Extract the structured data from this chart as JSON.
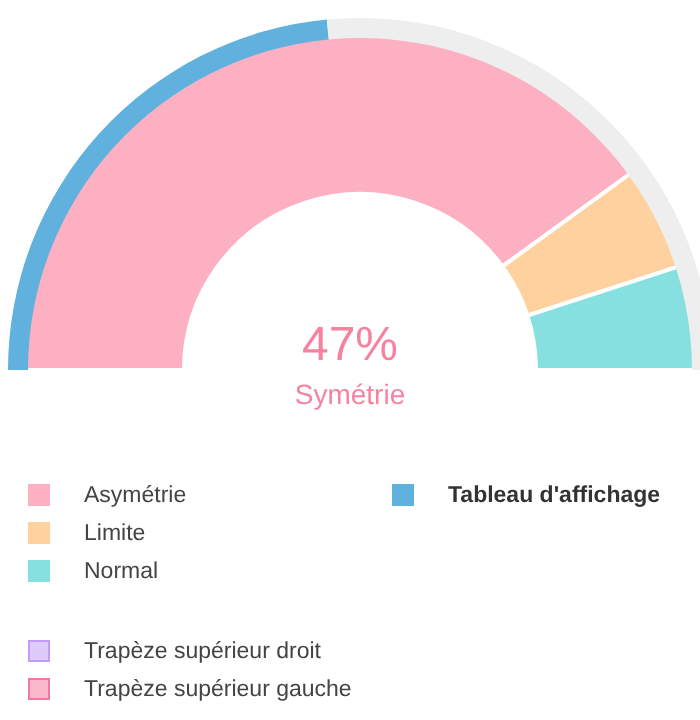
{
  "chart_data": [
    {
      "type": "donut",
      "categories": [
        "Asymétrie",
        "Limite",
        "Normal"
      ],
      "values": [
        80,
        10,
        10
      ],
      "colors": [
        "#fdb0c2",
        "#fed19f",
        "#87e0e0"
      ],
      "legend": "bottom left",
      "annotations": [
        "47%",
        "Symétrie"
      ]
    },
    {
      "type": "donut",
      "categories": [
        "Tableau d'affichage",
        null,
        "Trapèze supérieur droit",
        "Trapèze supérieur gauche"
      ],
      "values": [
        47,
        53,
        null,
        null
      ],
      "colors": [
        "#61b1df",
        "#eeeeee",
        "#c39bfa",
        "#f4799f"
      ],
      "legend": "bottom"
    }
  ]
}
